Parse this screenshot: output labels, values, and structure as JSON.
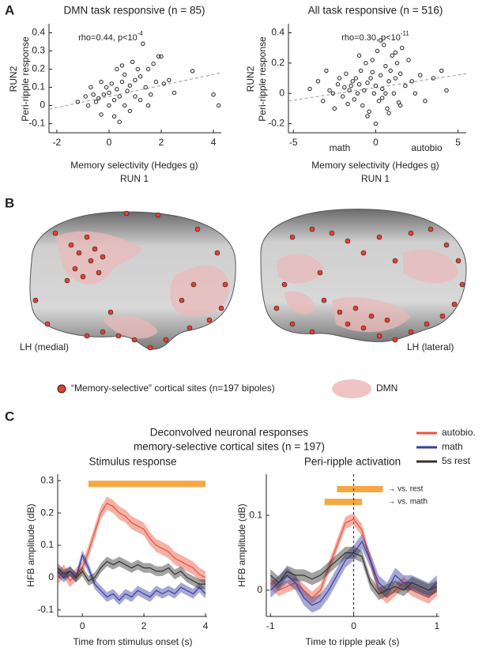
{
  "panel_labels": [
    "A",
    "B",
    "C"
  ],
  "brain_panel": {
    "labels": [
      "LH (medial)",
      "LH (lateral)"
    ],
    "legend": [
      "“Memory-selective” cortical sites (n=197 bipoles)",
      "DMN"
    ]
  },
  "panel_c_title": [
    "Deconvolved neuronal responses",
    "memory-selective cortical sites (n = 197)"
  ],
  "chart_data": [
    {
      "type": "scatter",
      "title": "DMN task responsive (n = 85)",
      "annotation": {
        "text": "rho=0.44, p<10",
        "superscript": "-4"
      },
      "x_label": [
        "Memory selectivity (Hedges g)",
        "RUN 1"
      ],
      "y_label": [
        "RUN2",
        "Peri-ripple response"
      ],
      "color": "#222",
      "x": [
        -1.2,
        -0.9,
        -0.8,
        -0.7,
        -0.6,
        -0.5,
        -0.4,
        -0.3,
        -0.2,
        -0.1,
        0,
        0,
        0.1,
        0.2,
        0.2,
        0.3,
        0.3,
        0.4,
        0.5,
        0.5,
        0.6,
        0.6,
        0.7,
        0.8,
        0.8,
        0.9,
        1.0,
        1.0,
        1.1,
        1.2,
        1.2,
        1.3,
        1.4,
        1.5,
        1.6,
        1.7,
        1.8,
        1.9,
        2.0,
        2.1,
        2.3,
        2.5,
        3.2,
        4.0,
        4.2,
        -0.3,
        0.4,
        1.5
      ],
      "values": [
        0.02,
        0.05,
        0.0,
        0.1,
        0.06,
        0.02,
        0.04,
        -0.05,
        0.06,
        0.1,
        0.0,
        0.07,
        0.12,
        0.03,
        -0.06,
        0.2,
        0.09,
        0.05,
        0.22,
        0.13,
        0.0,
        0.17,
        0.08,
        0.11,
        -0.03,
        0.24,
        0.14,
        0.05,
        0.2,
        0.03,
        0.16,
        0.34,
        0.1,
        0.2,
        0.06,
        0.23,
        0.13,
        0.27,
        0.27,
        0.12,
        0.14,
        0.07,
        0.19,
        0.06,
        0.0,
        0.13,
        -0.09,
        0.0
      ],
      "trend_line": {
        "x": [
          -2.3,
          4.3
        ],
        "y": [
          -0.02,
          0.18
        ]
      },
      "xlim": [
        -2.3,
        4.3
      ],
      "ylim": [
        -0.15,
        0.45
      ],
      "xticks": [
        -2,
        0,
        2,
        4
      ],
      "yticks": [
        -0.1,
        0,
        0.1,
        0.2,
        0.3,
        0.4
      ]
    },
    {
      "type": "scatter",
      "title": "All task responsive (n = 516)",
      "annotation": {
        "text": "rho=0.30, p<10",
        "superscript": "-11"
      },
      "x_label": [
        "Memory selectivity (Hedges g)",
        "RUN 1"
      ],
      "y_label": [
        "RUN2",
        "Peri-ripple response"
      ],
      "extra_labels": [
        "math",
        "autobio"
      ],
      "color": "#222",
      "x": [
        -4.0,
        -3.5,
        -3.2,
        -3.0,
        -2.8,
        -2.6,
        -2.5,
        -2.3,
        -2.2,
        -2.0,
        -1.9,
        -1.8,
        -1.7,
        -1.6,
        -1.5,
        -1.4,
        -1.3,
        -1.2,
        -1.1,
        -1.0,
        -0.9,
        -0.8,
        -0.7,
        -0.6,
        -0.5,
        -0.4,
        -0.3,
        -0.2,
        -0.1,
        0.0,
        0.1,
        0.2,
        0.3,
        0.4,
        0.5,
        0.6,
        0.7,
        0.8,
        0.9,
        1.0,
        1.1,
        1.2,
        1.3,
        1.4,
        1.5,
        1.6,
        1.8,
        2.0,
        2.2,
        2.4,
        2.7,
        3.0,
        3.5,
        4.0,
        4.3,
        -0.5,
        0.0,
        0.3,
        0.8,
        1.2,
        -1.0,
        0.6,
        1.5,
        -0.2,
        0.4
      ],
      "values": [
        0.03,
        0.08,
        -0.05,
        0.15,
        0.02,
        0.0,
        -0.1,
        0.06,
        0.1,
        -0.02,
        0.04,
        0.13,
        -0.07,
        0.02,
        0.05,
        0.08,
        -0.04,
        0.1,
        0.0,
        0.06,
        0.15,
        -0.08,
        0.02,
        0.2,
        0.07,
        -0.12,
        0.1,
        0.22,
        0.0,
        0.05,
        0.28,
        -0.05,
        0.12,
        0.03,
        0.32,
        0.18,
        -0.1,
        0.08,
        0.15,
        0.25,
        0.0,
        0.1,
        0.2,
        -0.06,
        0.13,
        0.3,
        0.05,
        0.22,
        0.08,
        0.0,
        0.12,
        -0.05,
        0.1,
        0.15,
        0.02,
        -0.15,
        -0.2,
        0.35,
        -0.13,
        0.27,
        0.25,
        0.0,
        -0.08,
        0.14,
        -0.03
      ],
      "trend_line": {
        "x": [
          -5.3,
          5.5
        ],
        "y": [
          -0.05,
          0.13
        ]
      },
      "xlim": [
        -5.3,
        5.5
      ],
      "ylim": [
        -0.26,
        0.46
      ],
      "xticks": [
        -5,
        0,
        5
      ],
      "yticks": [
        -0.2,
        0,
        0.2,
        0.4
      ]
    },
    {
      "type": "line",
      "title": "Stimulus response",
      "x_label": "Time from stimulus onset (s)",
      "y_label": "HFB amplitude (dB)",
      "x": [
        -0.8,
        -0.6,
        -0.4,
        -0.2,
        0,
        0.2,
        0.4,
        0.6,
        0.8,
        1.0,
        1.2,
        1.4,
        1.6,
        1.8,
        2.0,
        2.2,
        2.4,
        2.6,
        2.8,
        3.0,
        3.2,
        3.4,
        3.6,
        3.8,
        4.0
      ],
      "series": [
        {
          "name": "autobio.",
          "color": "#e8533a",
          "sem": 0.02,
          "values": [
            0.0,
            0.02,
            -0.01,
            0.01,
            0.03,
            0.08,
            0.14,
            0.2,
            0.23,
            0.22,
            0.2,
            0.19,
            0.17,
            0.16,
            0.15,
            0.12,
            0.1,
            0.09,
            0.08,
            0.06,
            0.05,
            0.04,
            0.03,
            0.01,
            0.0
          ]
        },
        {
          "name": "math",
          "color": "#3a3da0",
          "sem": 0.015,
          "values": [
            0.02,
            0.0,
            0.02,
            0.0,
            0.07,
            0.03,
            -0.02,
            -0.04,
            -0.06,
            -0.05,
            -0.07,
            -0.05,
            -0.06,
            -0.04,
            -0.05,
            -0.06,
            -0.04,
            -0.05,
            -0.04,
            -0.05,
            -0.03,
            -0.04,
            -0.05,
            -0.03,
            -0.05
          ]
        },
        {
          "name": "5s rest",
          "color": "#333333",
          "sem": 0.015,
          "values": [
            0.03,
            0.01,
            0.02,
            0.0,
            0.02,
            -0.01,
            0.0,
            0.03,
            0.05,
            0.04,
            0.05,
            0.04,
            0.03,
            0.04,
            0.03,
            0.03,
            0.02,
            0.02,
            0.03,
            0.01,
            0.02,
            0.0,
            -0.01,
            -0.02,
            -0.02
          ]
        }
      ],
      "sig_color": "#f5a742",
      "sig_bars": [
        {
          "start": 0.2,
          "end": 4.0,
          "y": 0.29
        }
      ],
      "xlim": [
        -0.8,
        4.05
      ],
      "ylim": [
        -0.12,
        0.32
      ],
      "xticks": [
        0,
        2,
        4
      ],
      "yticks": [
        -0.1,
        0,
        0.1,
        0.2,
        0.3
      ]
    },
    {
      "type": "line",
      "title": "Peri-ripple activation",
      "x_label": "Time to ripple peak (s)",
      "y_label": "HFB amplitude (dB)",
      "x": [
        -1,
        -0.9,
        -0.8,
        -0.7,
        -0.6,
        -0.5,
        -0.4,
        -0.3,
        -0.2,
        -0.1,
        0,
        0.1,
        0.2,
        0.3,
        0.4,
        0.5,
        0.6,
        0.7,
        0.8,
        0.9,
        1.0
      ],
      "series": [
        {
          "color": "#e8533a",
          "sem": 0.008,
          "values": [
            0.01,
            0.0,
            0.005,
            0.01,
            0.0,
            -0.01,
            0.0,
            0.03,
            0.06,
            0.09,
            0.095,
            0.08,
            0.04,
            0.0,
            -0.01,
            0.0,
            0.01,
            0.0,
            -0.005,
            -0.01,
            0.0
          ]
        },
        {
          "color": "#3a3da0",
          "sem": 0.01,
          "values": [
            0.0,
            0.01,
            0.02,
            0.01,
            -0.01,
            -0.02,
            -0.015,
            0.0,
            0.02,
            0.04,
            0.05,
            0.065,
            0.04,
            0.01,
            0.0,
            0.02,
            0.01,
            0.01,
            0.005,
            0.0,
            0.01
          ]
        },
        {
          "color": "#333333",
          "sem": 0.008,
          "values": [
            0.02,
            0.01,
            0.025,
            0.02,
            0.02,
            0.015,
            0.02,
            0.03,
            0.04,
            0.05,
            0.05,
            0.045,
            0.01,
            -0.005,
            0.0,
            0.005,
            0.0,
            0.01,
            0.005,
            0.0,
            0.005
          ]
        }
      ],
      "sig_color": "#f5a742",
      "sig_bars": [
        {
          "start": -0.2,
          "end": 0.35,
          "y": 0.135,
          "label": "→ vs. rest"
        },
        {
          "start": -0.35,
          "end": 0.1,
          "y": 0.118,
          "label": "→ vs. math"
        }
      ],
      "vline": 0,
      "xlim": [
        -1.05,
        1.03
      ],
      "ylim": [
        -0.035,
        0.155
      ],
      "xticks": [
        -1,
        0,
        1
      ],
      "yticks": [
        0,
        0.1
      ]
    }
  ]
}
